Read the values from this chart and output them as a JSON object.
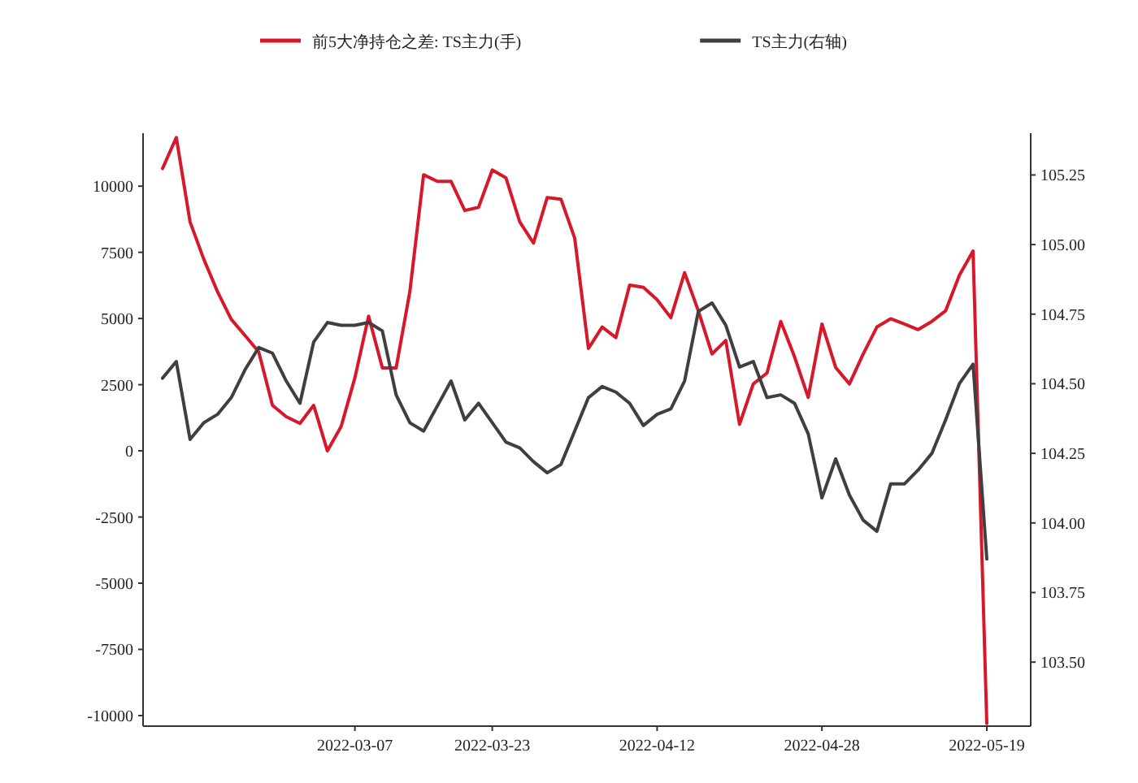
{
  "chart_data": {
    "type": "line",
    "categories": [
      null,
      null,
      null,
      null,
      null,
      null,
      null,
      null,
      null,
      null,
      null,
      null,
      null,
      null,
      "2022-03-07",
      null,
      null,
      null,
      null,
      null,
      null,
      null,
      null,
      null,
      "2022-03-23",
      null,
      null,
      null,
      null,
      null,
      null,
      null,
      null,
      null,
      null,
      null,
      "2022-04-12",
      null,
      null,
      null,
      null,
      null,
      null,
      null,
      null,
      null,
      null,
      null,
      "2022-04-28",
      null,
      null,
      null,
      null,
      null,
      null,
      null,
      null,
      null,
      null,
      null,
      "2022-05-19"
    ],
    "series": [
      {
        "name": "前5大净持仓之差: TS主力(手)",
        "color": "#d7182a",
        "values": [
          10670,
          11840,
          8650,
          7240,
          6010,
          4970,
          4360,
          3740,
          1720,
          1290,
          1040,
          1720,
          0,
          920,
          2760,
          5090,
          3130,
          3130,
          6010,
          10430,
          10180,
          10180,
          9080,
          9200,
          10610,
          10310,
          8650,
          7850,
          9570,
          9510,
          8040,
          3870,
          4680,
          4280,
          6260,
          6180,
          5710,
          5030,
          6730,
          5290,
          3660,
          4170,
          1000,
          2530,
          2940,
          4890,
          3560,
          2020,
          4790,
          3150,
          2530,
          3660,
          4680,
          4990,
          4790,
          4580,
          4890,
          5290,
          6630,
          7550,
          -10300
        ]
      },
      {
        "name": "TS主力(右轴)",
        "color": "#3f3f3f",
        "axis": "y2",
        "values": [
          104.52,
          104.58,
          104.3,
          104.36,
          104.39,
          104.45,
          104.55,
          104.63,
          104.61,
          104.51,
          104.43,
          104.65,
          104.72,
          104.71,
          104.71,
          104.72,
          104.69,
          104.46,
          104.36,
          104.33,
          104.42,
          104.51,
          104.37,
          104.43,
          104.36,
          104.29,
          104.27,
          104.22,
          104.18,
          104.21,
          104.33,
          104.45,
          104.49,
          104.47,
          104.43,
          104.35,
          104.39,
          104.41,
          104.51,
          104.76,
          104.79,
          104.71,
          104.56,
          104.58,
          104.45,
          104.46,
          104.43,
          104.32,
          104.09,
          104.23,
          104.1,
          104.01,
          103.97,
          104.14,
          104.14,
          104.19,
          104.25,
          104.37,
          104.5,
          104.57,
          103.87
        ]
      }
    ],
    "ylim": [
      -10400,
      12000
    ],
    "yticks": [
      -10000,
      -7500,
      -5000,
      -2500,
      0,
      2500,
      5000,
      7500,
      10000
    ],
    "y2lim": [
      103.27,
      105.4
    ],
    "y2ticks": [
      {
        "value": 103.5,
        "label": "103.50"
      },
      {
        "value": 103.75,
        "label": "103.75"
      },
      {
        "value": 104.0,
        "label": "104.00"
      },
      {
        "value": 104.25,
        "label": "104.25"
      },
      {
        "value": 104.5,
        "label": "104.50"
      },
      {
        "value": 104.75,
        "label": "104.75"
      },
      {
        "value": 105.0,
        "label": "105.00"
      },
      {
        "value": 105.25,
        "label": "105.25"
      }
    ],
    "legend": "top"
  }
}
